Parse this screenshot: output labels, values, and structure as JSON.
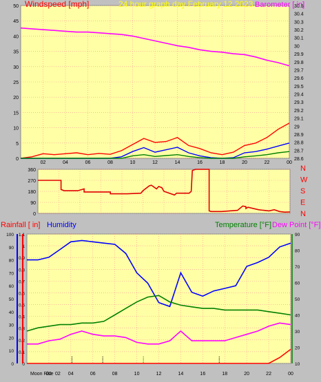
{
  "chart_data": [
    {
      "type": "line",
      "title": "24 hour graph day   February 12 2023",
      "ylabel": "Windspeed [mph]",
      "y2label": "Barometer [ in]",
      "ylim": [
        0,
        50
      ],
      "y2lim": [
        28.6,
        30.5
      ],
      "yticks": [
        "0",
        "5",
        "10",
        "15",
        "20",
        "25",
        "30",
        "35",
        "40",
        "45",
        "50"
      ],
      "y2ticks": [
        "28.6",
        "28.7",
        "28.8",
        "28.9",
        "29",
        "29.1",
        "29.2",
        "29.3",
        "29.4",
        "29.5",
        "29.6",
        "29.7",
        "29.8",
        "29.9",
        "30",
        "30.1",
        "30.2",
        "30.3",
        "30.4",
        "30.5"
      ],
      "xticks": [
        "02",
        "04",
        "06",
        "08",
        "10",
        "12",
        "14",
        "16",
        "18",
        "20",
        "22",
        "00"
      ],
      "x": [
        0,
        1,
        2,
        3,
        4,
        5,
        6,
        7,
        8,
        9,
        10,
        11,
        12,
        13,
        14,
        15,
        16,
        17,
        18,
        19,
        20,
        21,
        22,
        23,
        24
      ],
      "series": [
        {
          "key": "barometer",
          "axis": "right",
          "color": "#ff00ff",
          "values": [
            30.22,
            30.21,
            30.2,
            30.19,
            30.18,
            30.17,
            30.17,
            30.16,
            30.15,
            30.14,
            30.12,
            30.09,
            30.06,
            30.03,
            30.0,
            29.98,
            29.95,
            29.93,
            29.92,
            29.9,
            29.89,
            29.86,
            29.82,
            29.79,
            29.75
          ]
        },
        {
          "key": "gust",
          "axis": "left",
          "color": "#ff0000",
          "values": [
            0,
            0.5,
            1.5,
            1.2,
            1.5,
            1.8,
            1.2,
            1.6,
            1.3,
            2.5,
            4.5,
            6.5,
            5.2,
            5.5,
            6.8,
            4.2,
            3.2,
            1.8,
            1.2,
            2.0,
            4.2,
            5.0,
            6.8,
            9.5,
            11.5
          ]
        },
        {
          "key": "speed",
          "axis": "left",
          "color": "#0000ff",
          "values": [
            0,
            0,
            0,
            0,
            0,
            0,
            0,
            0,
            0,
            0.5,
            2.2,
            3.5,
            2.0,
            2.8,
            3.6,
            1.8,
            0.8,
            0.2,
            0,
            0.2,
            1.8,
            2.2,
            3.0,
            4.0,
            5.0
          ]
        },
        {
          "key": "avg",
          "axis": "left",
          "color": "#008000",
          "values": [
            0,
            0,
            0,
            0,
            0,
            0,
            0,
            0,
            0,
            0,
            0.8,
            1.2,
            0.6,
            0.9,
            1.2,
            0.6,
            0.2,
            0,
            0,
            0,
            0.5,
            0.8,
            1.2,
            1.8,
            2.2
          ]
        }
      ]
    },
    {
      "type": "line",
      "ylim": [
        0,
        360
      ],
      "yticks": [
        "0",
        "90",
        "180",
        "270",
        "360"
      ],
      "directions": [
        "N",
        "W",
        "S",
        "E",
        "N"
      ],
      "x": [
        0,
        2.2,
        2.2,
        2.5,
        3.8,
        4.4,
        4.4,
        6.9,
        6.9,
        8.5,
        9.8,
        10.0,
        10.6,
        10.8,
        11.3,
        11.5,
        11.8,
        12.0,
        13.0,
        13.2,
        14.4,
        14.6,
        14.7,
        15.0,
        16.3,
        16.3,
        16.5,
        17.5,
        19.0,
        19.5,
        19.8,
        19.8,
        20.0,
        21.0,
        21.5,
        22.0,
        22.5,
        23.0,
        23.5,
        24.0
      ],
      "values": [
        270,
        270,
        195,
        185,
        185,
        200,
        175,
        175,
        160,
        160,
        165,
        185,
        225,
        230,
        200,
        220,
        210,
        180,
        150,
        165,
        165,
        180,
        350,
        360,
        360,
        20,
        15,
        15,
        25,
        60,
        55,
        40,
        50,
        30,
        25,
        20,
        30,
        15,
        10,
        12
      ]
    },
    {
      "type": "line",
      "ylabel": "Rainfall [ in]",
      "ylabel2": "Humidity",
      "y2label": "Temperature [°F]",
      "y2label2": "Dew Point [°F]",
      "ylim_rain": [
        0,
        1.1
      ],
      "ylim_humidity": [
        0,
        100
      ],
      "ylim_temp": [
        10,
        90
      ],
      "rain_ticks": [
        "0",
        "0.1",
        "0.2",
        "0.3",
        "0.4",
        "0.5",
        "0.6",
        "0.7",
        "0.8",
        "0.9",
        "1",
        "1.1"
      ],
      "humidity_ticks": [
        "0",
        "10",
        "20",
        "30",
        "40",
        "50",
        "60",
        "70",
        "80",
        "90",
        "100"
      ],
      "temp_ticks": [
        "10",
        "20",
        "30",
        "40",
        "50",
        "60",
        "70",
        "80",
        "90"
      ],
      "xticks": [
        "02",
        "04",
        "06",
        "08",
        "10",
        "12",
        "14",
        "16",
        "18",
        "20",
        "22",
        "00"
      ],
      "x": [
        0,
        1,
        2,
        3,
        4,
        5,
        6,
        7,
        8,
        9,
        10,
        11,
        12,
        13,
        14,
        15,
        16,
        17,
        18,
        19,
        20,
        21,
        22,
        23,
        24
      ],
      "series": [
        {
          "key": "humidity",
          "scale": "humidity",
          "color": "#0000ff",
          "values": [
            80,
            80,
            82,
            88,
            94,
            95,
            94,
            93,
            92,
            85,
            70,
            62,
            47,
            44,
            70,
            55,
            52,
            56,
            58,
            60,
            75,
            78,
            82,
            90,
            93
          ]
        },
        {
          "key": "temperature",
          "scale": "temp",
          "color": "#008000",
          "values": [
            30,
            32,
            33,
            34,
            34,
            35,
            35,
            36,
            40,
            44,
            48,
            51,
            52,
            48,
            46,
            45,
            44,
            44,
            43,
            43,
            43,
            43,
            42,
            41,
            40
          ]
        },
        {
          "key": "dewpoint",
          "scale": "temp",
          "color": "#ff00ff",
          "values": [
            22,
            22,
            24,
            25,
            28,
            30,
            28,
            27,
            27,
            26,
            23,
            22,
            22,
            24,
            30,
            24,
            24,
            24,
            24,
            26,
            28,
            30,
            33,
            35,
            34
          ]
        },
        {
          "key": "rainfall",
          "scale": "rain",
          "color": "#ff0000",
          "values": [
            0,
            0,
            0,
            0,
            0,
            0,
            0,
            0,
            0,
            0,
            0,
            0,
            0,
            0,
            0,
            0,
            0,
            0,
            0,
            0,
            0,
            0,
            0,
            0.05,
            0.12
          ]
        }
      ],
      "moon_label": "Moon Rise",
      "moon_first_tick": "02"
    }
  ]
}
